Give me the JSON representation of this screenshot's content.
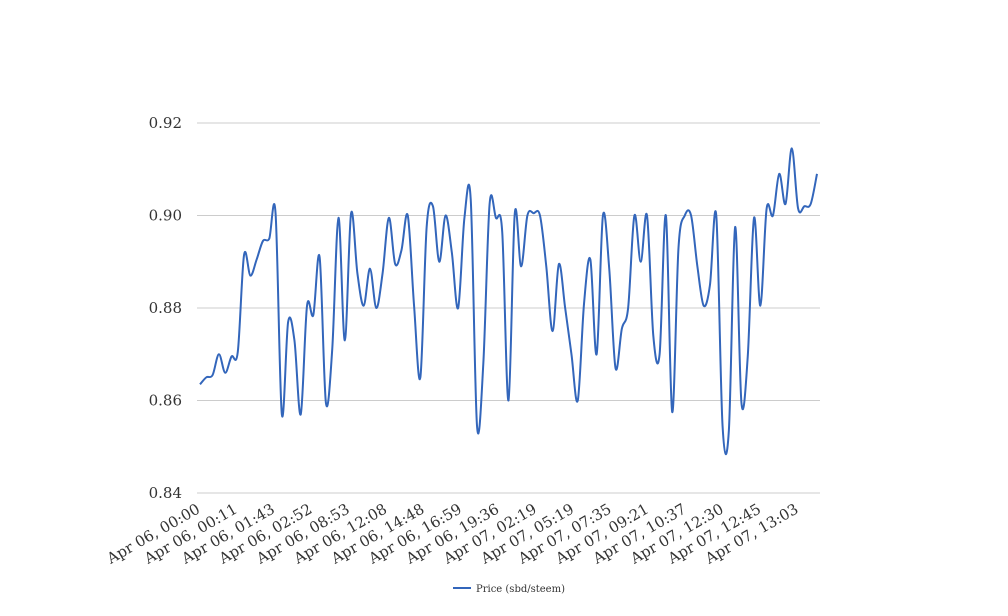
{
  "chart_data": {
    "type": "line",
    "title": "",
    "xlabel": "",
    "ylabel": "",
    "ylim": [
      0.84,
      0.92
    ],
    "yticks": [
      "0.84",
      "0.86",
      "0.88",
      "0.90",
      "0.92"
    ],
    "grid": true,
    "legend_position": "bottom-center",
    "x_tick_labels": [
      "Apr 06, 00:00",
      "Apr 06, 00:11",
      "Apr 06, 01:43",
      "Apr 06, 02:52",
      "Apr 06, 08:53",
      "Apr 06, 12:08",
      "Apr 06, 14:48",
      "Apr 06, 16:59",
      "Apr 06, 19:36",
      "Apr 07, 02:19",
      "Apr 07, 05:19",
      "Apr 07, 07:35",
      "Apr 07, 09:21",
      "Apr 07, 10:37",
      "Apr 07, 12:30",
      "Apr 07, 12:45",
      "Apr 07, 13:03"
    ],
    "series": [
      {
        "name": "Price (sbd/steem)",
        "color": "#3366bb",
        "values": [
          0.8635,
          0.865,
          0.8655,
          0.87,
          0.866,
          0.8695,
          0.8705,
          0.8915,
          0.887,
          0.8905,
          0.8945,
          0.895,
          0.9005,
          0.857,
          0.877,
          0.873,
          0.857,
          0.8805,
          0.8785,
          0.891,
          0.8595,
          0.871,
          0.8995,
          0.873,
          0.9005,
          0.8875,
          0.8805,
          0.8885,
          0.88,
          0.8875,
          0.8995,
          0.8895,
          0.8925,
          0.9,
          0.8805,
          0.865,
          0.8975,
          0.902,
          0.89,
          0.9,
          0.892,
          0.88,
          0.8995,
          0.9035,
          0.8545,
          0.868,
          0.9025,
          0.8995,
          0.8965,
          0.86,
          0.9005,
          0.889,
          0.9,
          0.9005,
          0.9,
          0.889,
          0.875,
          0.8895,
          0.88,
          0.87,
          0.86,
          0.881,
          0.8905,
          0.87,
          0.9,
          0.8885,
          0.867,
          0.8755,
          0.88,
          0.9,
          0.89,
          0.9,
          0.874,
          0.87,
          0.9,
          0.8575,
          0.893,
          0.9,
          0.9,
          0.889,
          0.8805,
          0.885,
          0.9,
          0.8545,
          0.8535,
          0.8975,
          0.8595,
          0.8695,
          0.8995,
          0.8805,
          0.9015,
          0.9,
          0.909,
          0.9025,
          0.9145,
          0.9015,
          0.902,
          0.9025,
          0.909
        ]
      }
    ]
  }
}
